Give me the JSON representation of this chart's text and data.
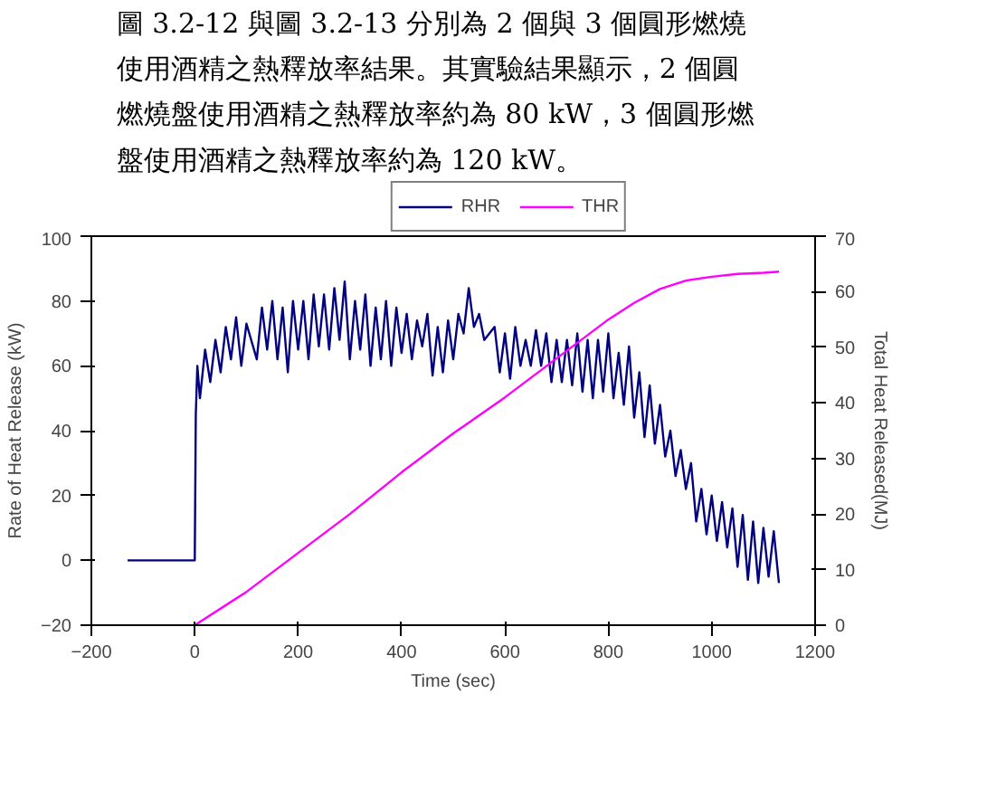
{
  "chart_data": {
    "type": "line",
    "xlabel": "Time (sec)",
    "ylabel": "Rate of Heat Release (kW)",
    "y2label": "Total Heat Released(MJ)",
    "annotations": [
      "圖 3.2-12 與圖 3.2-13 分別為 2 個與 3 個圓形燃燒",
      "使用酒精之熱釋放率結果。其實驗結果顯示，2 個圓",
      "燃燒盤使用酒精之熱釋放率約為 80 kW，3 個圓形燃",
      "盤使用酒精之熱釋放率約為 120 kW。"
    ],
    "xlim": [
      -200,
      1200
    ],
    "xticks": [
      -200,
      0,
      200,
      400,
      600,
      800,
      1000,
      1200
    ],
    "ylim": [
      -20,
      100
    ],
    "yticks": [
      -20,
      0,
      20,
      40,
      60,
      80,
      100
    ],
    "y2lim": [
      0,
      70
    ],
    "y2ticks": [
      0,
      10,
      20,
      30,
      40,
      50,
      60,
      70
    ],
    "grid": false,
    "legend": "top",
    "series": [
      {
        "name": "RHR",
        "color": "#000080",
        "x": [
          -130,
          0,
          2,
          5,
          10,
          20,
          30,
          40,
          50,
          60,
          70,
          80,
          90,
          100,
          120,
          130,
          140,
          150,
          160,
          170,
          180,
          190,
          200,
          210,
          220,
          230,
          240,
          250,
          260,
          270,
          280,
          290,
          300,
          310,
          320,
          330,
          340,
          350,
          360,
          370,
          380,
          390,
          400,
          410,
          420,
          430,
          440,
          450,
          460,
          470,
          480,
          490,
          500,
          510,
          520,
          530,
          540,
          550,
          560,
          580,
          590,
          600,
          610,
          620,
          630,
          640,
          650,
          660,
          670,
          680,
          690,
          700,
          710,
          720,
          730,
          740,
          750,
          760,
          770,
          780,
          790,
          800,
          810,
          820,
          830,
          840,
          850,
          860,
          870,
          880,
          890,
          900,
          910,
          920,
          930,
          940,
          950,
          960,
          970,
          980,
          990,
          1000,
          1010,
          1020,
          1030,
          1040,
          1050,
          1060,
          1070,
          1080,
          1090,
          1100,
          1110,
          1120,
          1130
        ],
        "values": [
          0,
          0,
          45,
          60,
          50,
          65,
          55,
          68,
          58,
          72,
          62,
          75,
          60,
          73,
          62,
          78,
          65,
          80,
          62,
          78,
          58,
          80,
          65,
          80,
          62,
          82,
          66,
          82,
          65,
          84,
          68,
          86,
          62,
          80,
          65,
          82,
          60,
          78,
          62,
          80,
          60,
          78,
          64,
          76,
          62,
          74,
          66,
          76,
          57,
          72,
          58,
          74,
          62,
          76,
          70,
          84,
          72,
          76,
          68,
          72,
          58,
          70,
          56,
          72,
          60,
          68,
          60,
          71,
          60,
          70,
          55,
          68,
          55,
          68,
          54,
          70,
          52,
          68,
          50,
          68,
          52,
          70,
          50,
          64,
          48,
          66,
          44,
          58,
          38,
          54,
          36,
          48,
          32,
          40,
          26,
          34,
          22,
          30,
          12,
          22,
          8,
          20,
          6,
          18,
          4,
          16,
          -2,
          14,
          -6,
          12,
          -7,
          10,
          -5,
          9,
          -7
        ]
      },
      {
        "name": "THR",
        "color": "#ff00ff",
        "axis": "y2",
        "x": [
          0,
          100,
          200,
          300,
          400,
          500,
          600,
          700,
          800,
          850,
          900,
          950,
          1000,
          1050,
          1100,
          1130
        ],
        "values": [
          0,
          6,
          13,
          20,
          27.5,
          34.5,
          41,
          48,
          55,
          58,
          60.5,
          62,
          62.7,
          63.2,
          63.4,
          63.6
        ]
      }
    ]
  }
}
